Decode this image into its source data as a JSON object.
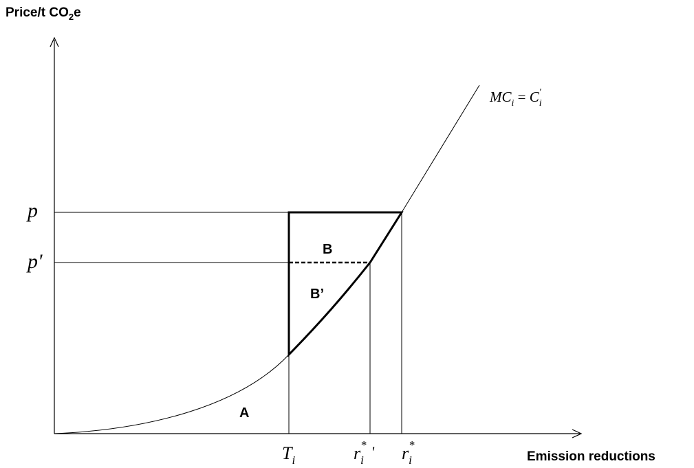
{
  "axes": {
    "y_label": "Price/t CO",
    "y_label_sub": "2",
    "y_label_tail": "e",
    "x_label": "Emission reductions"
  },
  "price_labels": {
    "p": "p",
    "p_prime": "p'"
  },
  "x_ticks": {
    "T": "T",
    "T_sub": "i",
    "r_prime": "r",
    "r_prime_sub": "i",
    "r_prime_sup": "*",
    "r_prime_mark": "'",
    "r": "r",
    "r_sub": "i",
    "r_sup": "*"
  },
  "curve_label": {
    "mc": "MC",
    "mc_sub": "i",
    "eq": " = ",
    "c": "C",
    "c_sub": "i",
    "c_sup": "'"
  },
  "area_labels": {
    "A": "A",
    "B": "B",
    "B_prime": "B’"
  },
  "colors": {
    "ink": "#000000",
    "background": "#ffffff"
  }
}
